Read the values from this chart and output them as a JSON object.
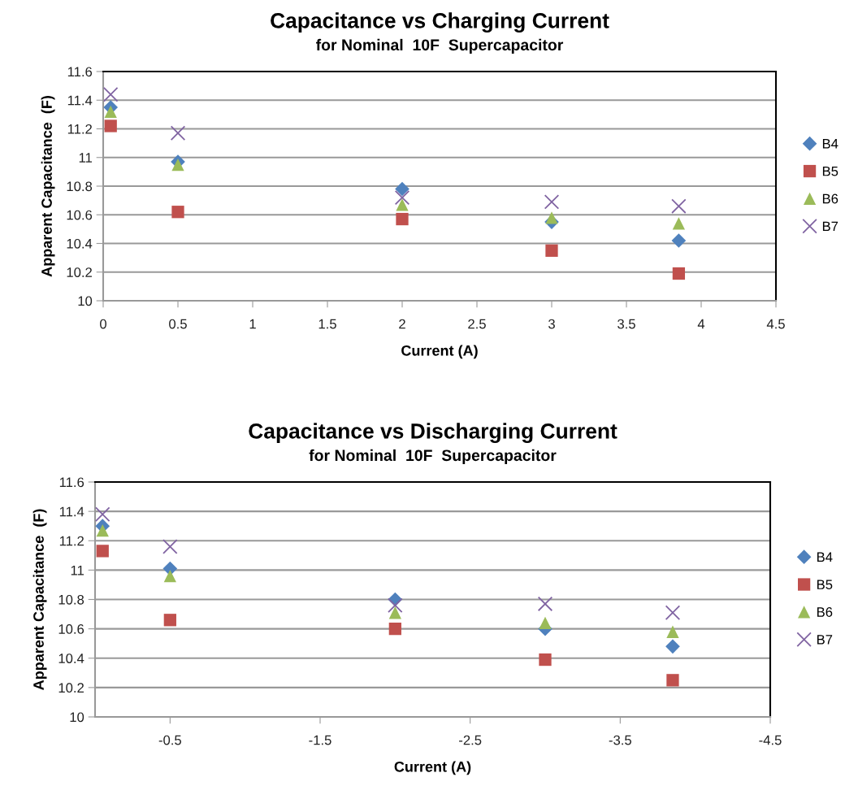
{
  "chart_data": [
    {
      "type": "scatter",
      "title": "Capacitance vs Charging Current",
      "subtitle": "for Nominal  10F  Supercapacitor",
      "xlabel": "Current (A)",
      "ylabel": "Apparent Capacitance  (F)",
      "xlim": [
        0,
        4.5
      ],
      "xticks": [
        0,
        0.5,
        1,
        1.5,
        2,
        2.5,
        3,
        3.5,
        4,
        4.5
      ],
      "ylim": [
        10,
        11.6
      ],
      "yticks": [
        10,
        10.2,
        10.4,
        10.6,
        10.8,
        11,
        11.2,
        11.4,
        11.6
      ],
      "grid": "y",
      "legend": "right",
      "series": [
        {
          "name": "B4",
          "color": "#4f81bd",
          "marker": "diamond",
          "x": [
            0.05,
            0.5,
            2,
            3,
            3.85
          ],
          "values": [
            11.35,
            10.97,
            10.78,
            10.55,
            10.42
          ]
        },
        {
          "name": "B5",
          "color": "#c0504d",
          "marker": "square",
          "x": [
            0.05,
            0.5,
            2,
            3,
            3.85
          ],
          "values": [
            11.22,
            10.62,
            10.57,
            10.35,
            10.19
          ]
        },
        {
          "name": "B6",
          "color": "#9bbb59",
          "marker": "triangle",
          "x": [
            0.05,
            0.5,
            2,
            3,
            3.85
          ],
          "values": [
            11.32,
            10.95,
            10.67,
            10.58,
            10.54
          ]
        },
        {
          "name": "B7",
          "color": "#8064a2",
          "marker": "cross",
          "x": [
            0.05,
            0.5,
            2,
            3,
            3.85
          ],
          "values": [
            11.44,
            11.17,
            10.72,
            10.69,
            10.66
          ]
        }
      ]
    },
    {
      "type": "scatter",
      "title": "Capacitance vs Discharging Current",
      "subtitle": "for Nominal  10F  Supercapacitor",
      "xlabel": "Current (A)",
      "ylabel": "Apparent Capacitance  (F)",
      "xlim": [
        0,
        -4.5
      ],
      "xticks": [
        -0.5,
        -1.5,
        -2.5,
        -3.5,
        -4.5
      ],
      "ylim": [
        10,
        11.6
      ],
      "yticks": [
        10,
        10.2,
        10.4,
        10.6,
        10.8,
        11,
        11.2,
        11.4,
        11.6
      ],
      "grid": "y",
      "legend": "right",
      "series": [
        {
          "name": "B4",
          "color": "#4f81bd",
          "marker": "diamond",
          "x": [
            -0.05,
            -0.5,
            -2,
            -3,
            -3.85
          ],
          "values": [
            11.3,
            11.01,
            10.8,
            10.6,
            10.48
          ]
        },
        {
          "name": "B5",
          "color": "#c0504d",
          "marker": "square",
          "x": [
            -0.05,
            -0.5,
            -2,
            -3,
            -3.85
          ],
          "values": [
            11.13,
            10.66,
            10.6,
            10.39,
            10.25
          ]
        },
        {
          "name": "B6",
          "color": "#9bbb59",
          "marker": "triangle",
          "x": [
            -0.05,
            -0.5,
            -2,
            -3,
            -3.85
          ],
          "values": [
            11.27,
            10.96,
            10.71,
            10.64,
            10.58
          ]
        },
        {
          "name": "B7",
          "color": "#8064a2",
          "marker": "cross",
          "x": [
            -0.05,
            -0.5,
            -2,
            -3,
            -3.85
          ],
          "values": [
            11.38,
            11.16,
            10.76,
            10.77,
            10.71
          ]
        }
      ]
    }
  ]
}
